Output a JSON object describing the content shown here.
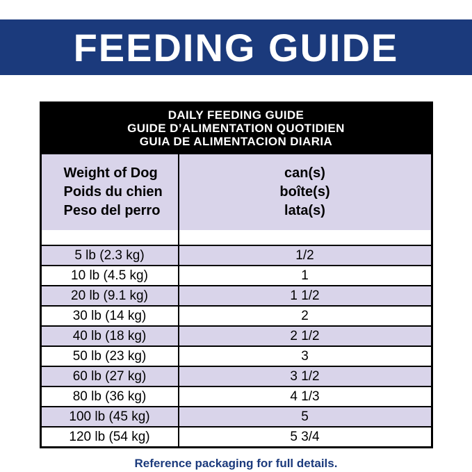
{
  "colors": {
    "banner_bg": "#1b3a7c",
    "banner_fg": "#ffffff",
    "table_header_bg": "#000000",
    "table_header_fg": "#ffffff",
    "band_bg": "#d9d4ea",
    "row_alt_bg": "#d9d4ea",
    "border": "#000000",
    "footer_fg": "#1b3a7c"
  },
  "banner": {
    "title": "FEEDING GUIDE"
  },
  "table": {
    "title_lines": [
      "DAILY FEEDING GUIDE",
      "GUIDE D’ALIMENTATION QUOTIDIEN",
      "GUIA DE ALIMENTACION DIARIA"
    ],
    "columns": {
      "weight_lines": [
        "Weight of Dog",
        "Poids du chien",
        "Peso del perro"
      ],
      "cans_lines": [
        "can(s)",
        "boîte(s)",
        "lata(s)"
      ]
    },
    "rows": [
      {
        "weight": "5 lb (2.3 kg)",
        "cans": "1/2"
      },
      {
        "weight": "10 lb (4.5 kg)",
        "cans": "1"
      },
      {
        "weight": "20 lb (9.1 kg)",
        "cans": "1 1/2"
      },
      {
        "weight": "30 lb (14 kg)",
        "cans": "2"
      },
      {
        "weight": "40 lb (18 kg)",
        "cans": "2 1/2"
      },
      {
        "weight": "50 lb (23 kg)",
        "cans": "3"
      },
      {
        "weight": "60 lb (27 kg)",
        "cans": "3 1/2"
      },
      {
        "weight": "80 lb (36 kg)",
        "cans": "4 1/3"
      },
      {
        "weight": "100 lb (45 kg)",
        "cans": "5"
      },
      {
        "weight": "120 lb (54 kg)",
        "cans": "5 3/4"
      }
    ]
  },
  "footer": {
    "note": "Reference packaging for full details."
  }
}
